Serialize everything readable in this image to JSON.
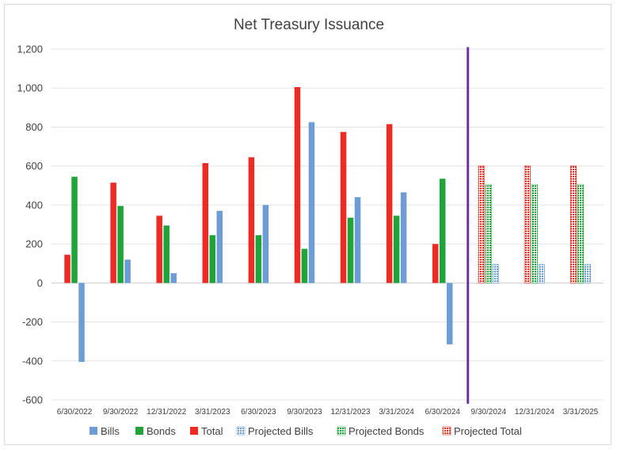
{
  "chart_data": {
    "type": "bar",
    "title": "Net Treasury Issuance",
    "xlabel": "",
    "ylabel": "",
    "ylim": [
      -600,
      1200
    ],
    "yticks": [
      -600,
      -400,
      -200,
      0,
      200,
      400,
      600,
      800,
      1000,
      1200
    ],
    "ytick_labels": [
      "-600",
      "-400",
      "-200",
      "0",
      "200",
      "400",
      "600",
      "800",
      "1,000",
      "1,200"
    ],
    "grid": true,
    "legend_position": "bottom",
    "categories": [
      "6/30/2022",
      "9/30/2022",
      "12/31/2022",
      "3/31/2023",
      "6/30/2023",
      "9/30/2023",
      "12/31/2023",
      "3/31/2024",
      "6/30/2024",
      "9/30/2024",
      "12/31/2024",
      "3/31/2025"
    ],
    "series": [
      {
        "name": "Total",
        "color": "#ee2a24",
        "projected": false,
        "values": [
          145,
          515,
          345,
          615,
          645,
          1005,
          775,
          815,
          200,
          null,
          null,
          null
        ]
      },
      {
        "name": "Bonds",
        "color": "#1fa439",
        "projected": false,
        "values": [
          545,
          395,
          295,
          245,
          245,
          175,
          335,
          345,
          535,
          null,
          null,
          null
        ]
      },
      {
        "name": "Bills",
        "color": "#6d9dd4",
        "projected": false,
        "values": [
          -405,
          120,
          50,
          370,
          400,
          825,
          440,
          465,
          -315,
          null,
          null,
          null
        ]
      },
      {
        "name": "Projected Total",
        "color": "#ee2a24",
        "projected": true,
        "values": [
          null,
          null,
          null,
          null,
          null,
          null,
          null,
          null,
          null,
          600,
          600,
          600
        ]
      },
      {
        "name": "Projected Bonds",
        "color": "#1fa439",
        "projected": true,
        "values": [
          null,
          null,
          null,
          null,
          null,
          null,
          null,
          null,
          null,
          505,
          505,
          505
        ]
      },
      {
        "name": "Projected Bills",
        "color": "#6d9dd4",
        "projected": true,
        "values": [
          null,
          null,
          null,
          null,
          null,
          null,
          null,
          null,
          null,
          95,
          95,
          95
        ]
      }
    ],
    "legend_order": [
      "Bills",
      "Bonds",
      "Total",
      "Projected Bills",
      "Projected Bonds",
      "Projected Total"
    ],
    "divider": {
      "color": "#7030a0"
    }
  }
}
